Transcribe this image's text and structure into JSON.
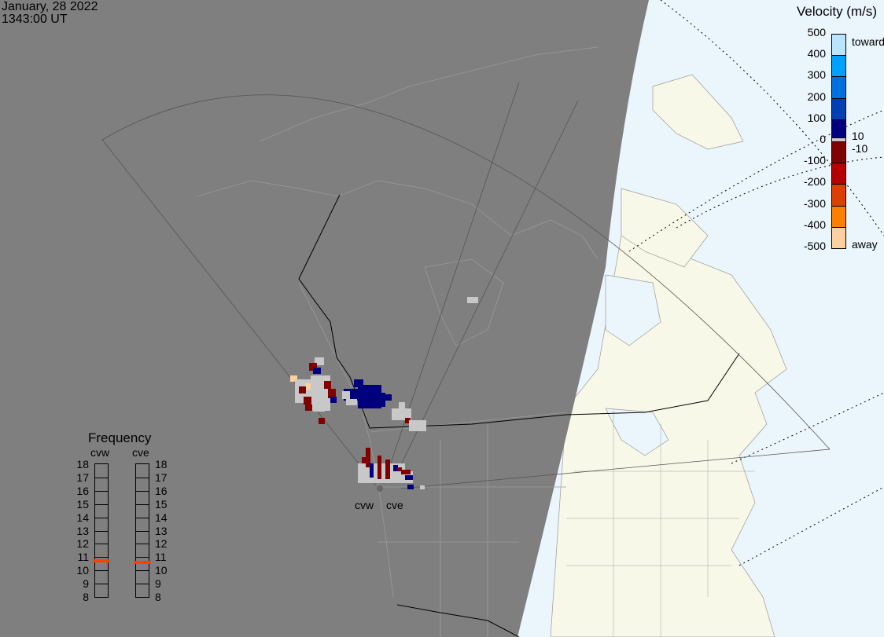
{
  "header": {
    "date": "January, 28 2022",
    "time": "1343:00 UT"
  },
  "radars": [
    {
      "code": "cvw",
      "frequency_mhz": 10.7
    },
    {
      "code": "cve",
      "frequency_mhz": 10.6
    }
  ],
  "colorbar": {
    "title": "Velocity (m/s)",
    "ticks": [
      "500",
      "400",
      "300",
      "200",
      "100",
      "0",
      "-100",
      "-200",
      "-300",
      "-400",
      "-500"
    ],
    "label_top": "toward",
    "label_bottom": "away",
    "label_pos_small": "10",
    "label_neg_small": "-10",
    "colors_toward": [
      "#b8e4fc",
      "#00a0fc",
      "#0070e0",
      "#0040b0",
      "#00007c"
    ],
    "colors_away": [
      "#800000",
      "#b40000",
      "#dc4000",
      "#fc8000",
      "#fcd0a0"
    ],
    "ground_scatter_color": "#c8c8c8"
  },
  "frequency_panel": {
    "title": "Frequency",
    "ticks": [
      "18",
      "17",
      "16",
      "15",
      "14",
      "13",
      "12",
      "11",
      "10",
      "9",
      "8"
    ],
    "range_mhz": [
      8,
      18
    ],
    "marker_color": "#ff4000"
  },
  "map": {
    "night_color": "#7f7f7f",
    "land_color": "#f8f8e8",
    "ocean_color": "#eaf5fc"
  }
}
